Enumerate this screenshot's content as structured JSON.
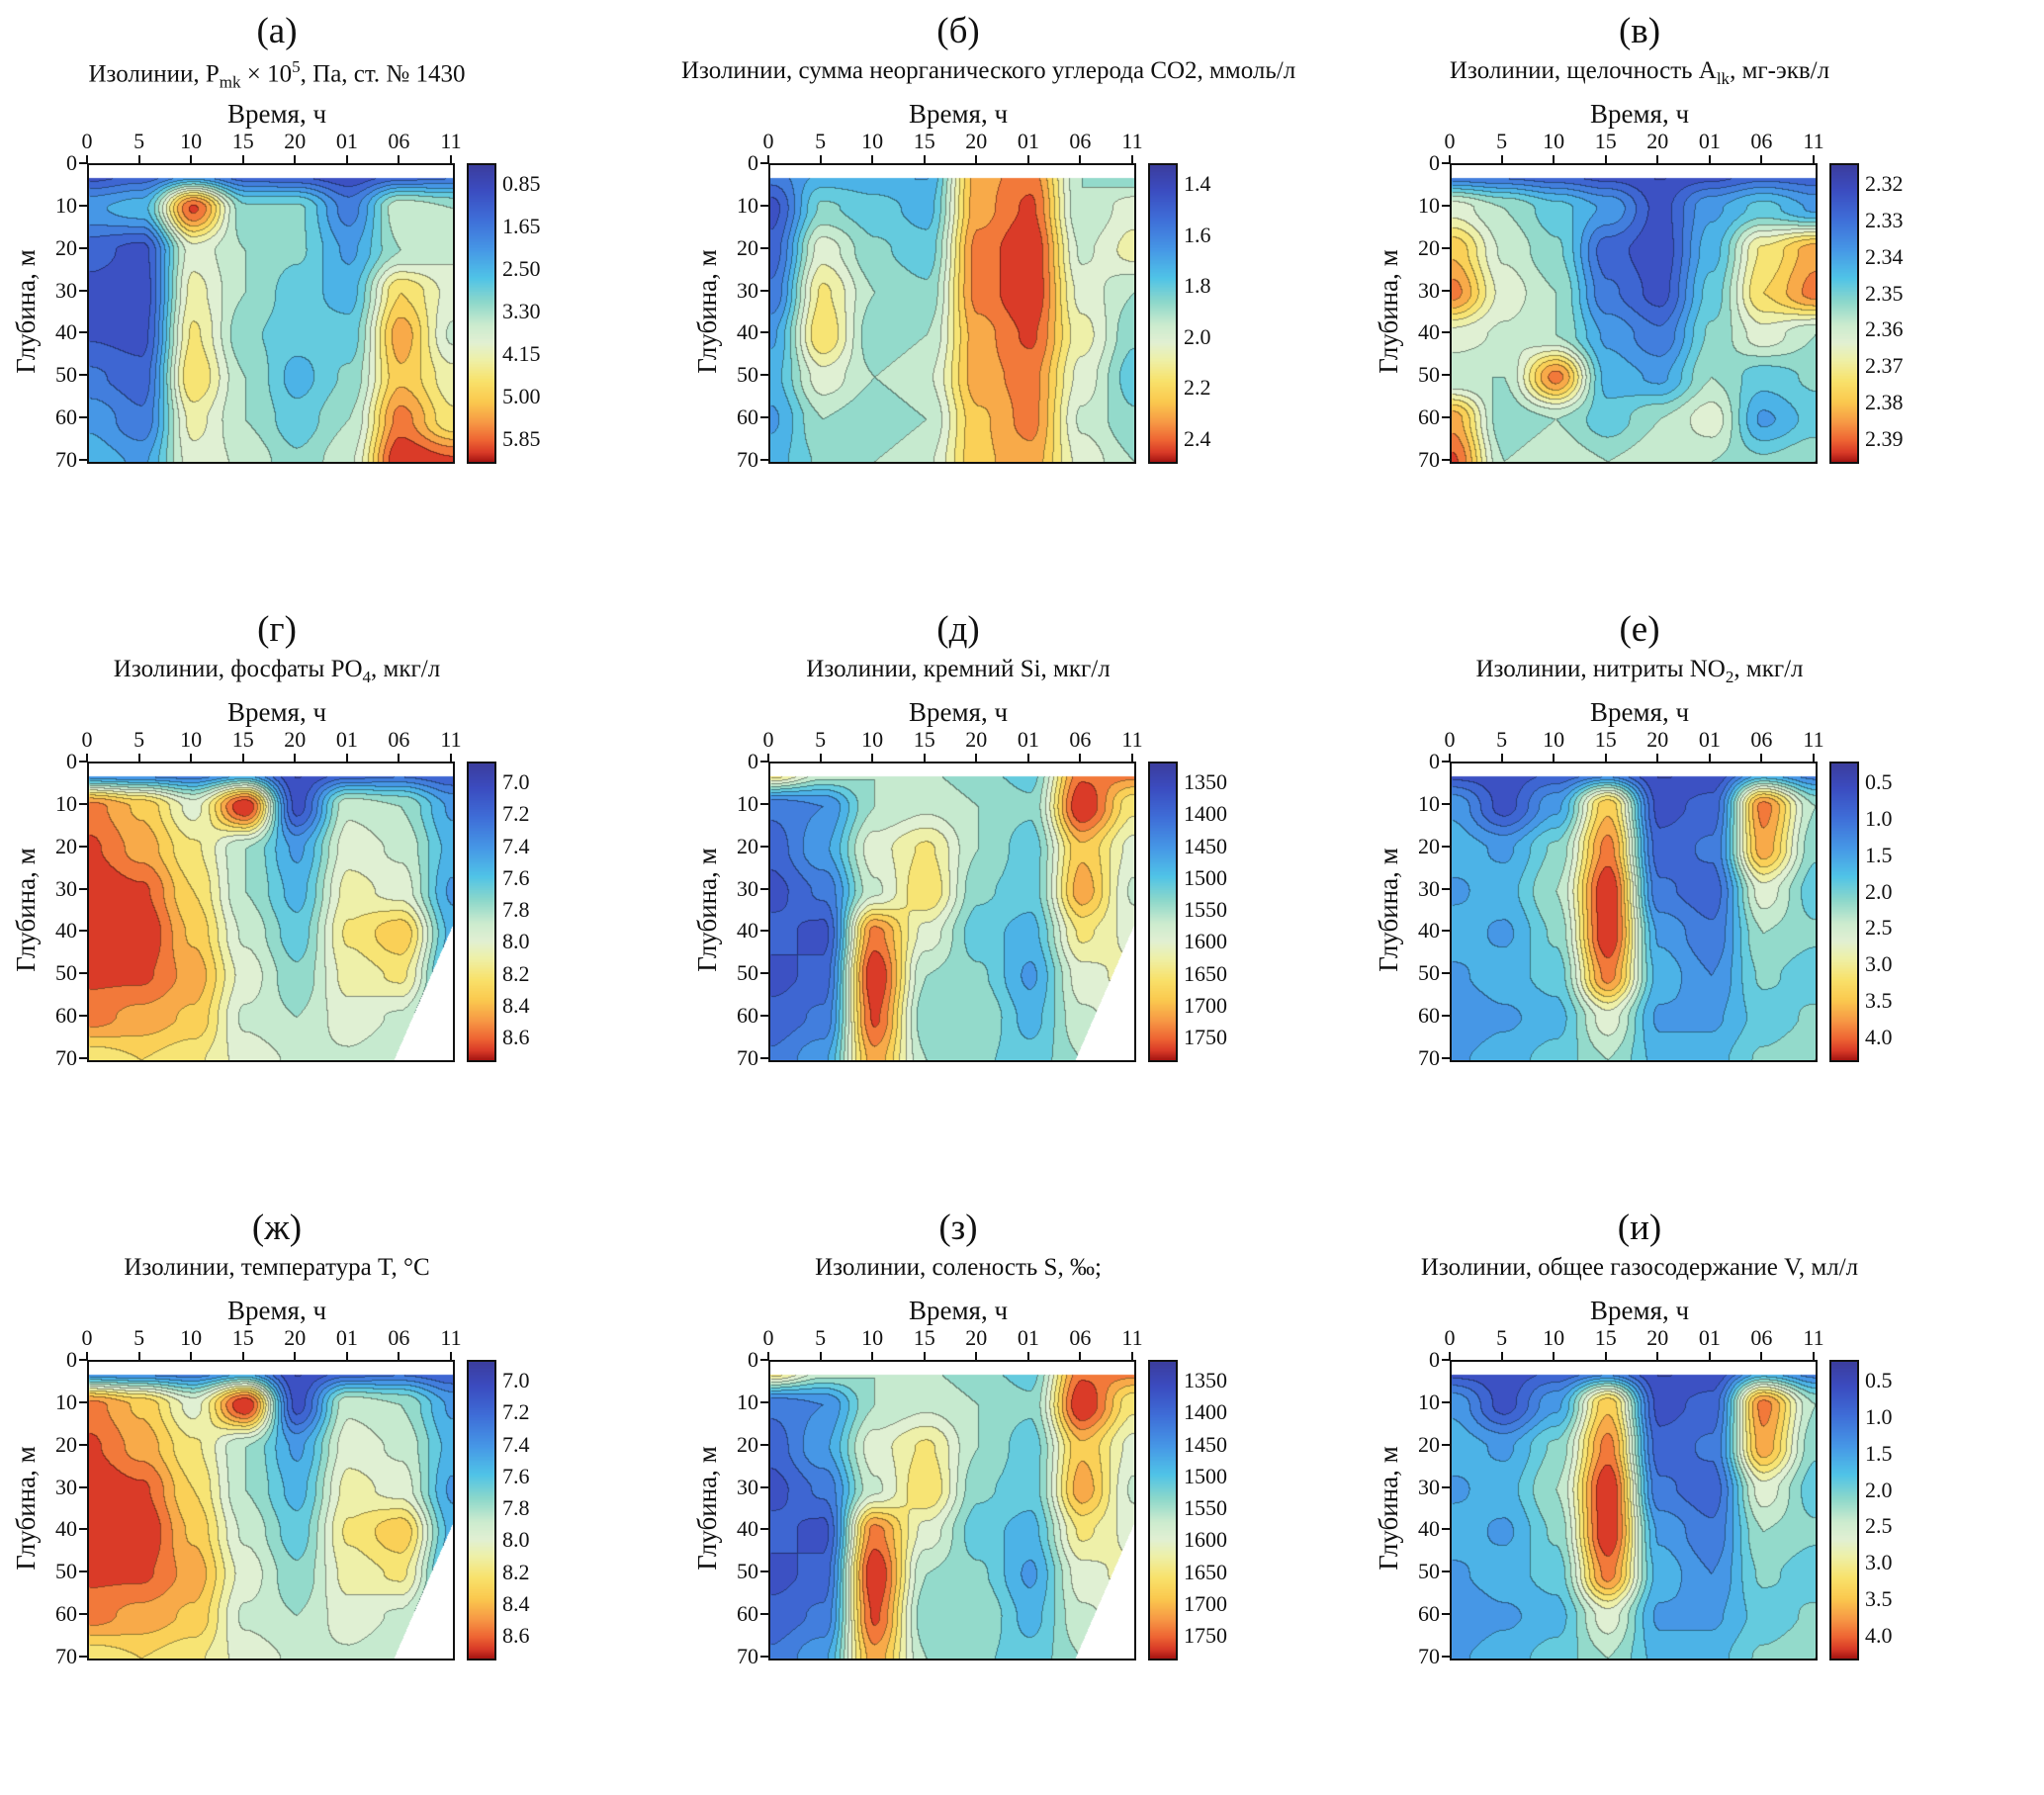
{
  "axes": {
    "xlabel": "Время, ч",
    "ylabel": "Глубина, м",
    "x_ticks": [
      "0",
      "5",
      "10",
      "15",
      "20",
      "01",
      "06",
      "11"
    ],
    "y_ticks": [
      "0",
      "10",
      "20",
      "30",
      "40",
      "50",
      "60",
      "70"
    ]
  },
  "palette": {
    "background": "#ffffff",
    "plot_border": "#111111",
    "n_levels": 16,
    "contour_line_darken": 0.58,
    "colormap_stops": [
      [
        0.0,
        "#3b3e9f"
      ],
      [
        0.08,
        "#3b4cc0"
      ],
      [
        0.18,
        "#3f6ed8"
      ],
      [
        0.28,
        "#4696e6"
      ],
      [
        0.38,
        "#50c4e8"
      ],
      [
        0.46,
        "#8cd8cb"
      ],
      [
        0.54,
        "#cdeccf"
      ],
      [
        0.6,
        "#e2f0d3"
      ],
      [
        0.66,
        "#eff0a6"
      ],
      [
        0.73,
        "#f9e26b"
      ],
      [
        0.8,
        "#fbc94f"
      ],
      [
        0.87,
        "#f79845"
      ],
      [
        0.93,
        "#ee6433"
      ],
      [
        0.97,
        "#d93a28"
      ],
      [
        1.0,
        "#a81613"
      ]
    ]
  },
  "chart_data": [
    {
      "id": "a",
      "type": "filled-contour",
      "letter": "(а)",
      "title": "Изолинии, P_{mk} × 10^{5}, Па, ст. № 1430",
      "xlabel": "Время, ч",
      "ylabel": "Глубина, м",
      "colorbar_ticks": [
        "0.85",
        "1.65",
        "2.50",
        "3.30",
        "4.15",
        "5.00",
        "5.85"
      ],
      "corner_cut": false,
      "field": [
        [
          0.05,
          0.1,
          0.12,
          0.08,
          0.05,
          0.04,
          0.06,
          0.1
        ],
        [
          0.3,
          0.35,
          0.95,
          0.45,
          0.45,
          0.22,
          0.55,
          0.5
        ],
        [
          0.15,
          0.1,
          0.6,
          0.5,
          0.45,
          0.3,
          0.5,
          0.55
        ],
        [
          0.1,
          0.08,
          0.65,
          0.5,
          0.4,
          0.35,
          0.75,
          0.6
        ],
        [
          0.12,
          0.1,
          0.7,
          0.45,
          0.4,
          0.4,
          0.85,
          0.55
        ],
        [
          0.2,
          0.15,
          0.75,
          0.5,
          0.35,
          0.45,
          0.8,
          0.65
        ],
        [
          0.3,
          0.2,
          0.65,
          0.5,
          0.4,
          0.5,
          0.9,
          0.7
        ],
        [
          0.35,
          0.3,
          0.6,
          0.55,
          0.45,
          0.55,
          1.0,
          0.95
        ]
      ]
    },
    {
      "id": "b",
      "type": "filled-contour",
      "letter": "(б)",
      "title": "Изолинии, сумма неорганического углерода CO2, ммоль/л",
      "xlabel": "Время, ч",
      "ylabel": "Глубина, м",
      "colorbar_ticks": [
        "1.4",
        "1.6",
        "1.8",
        "2.0",
        "2.2",
        "2.4"
      ],
      "corner_cut": false,
      "field": [
        [
          0.25,
          0.3,
          0.3,
          0.3,
          0.85,
          0.9,
          0.5,
          0.4
        ],
        [
          0.1,
          0.45,
          0.4,
          0.35,
          0.85,
          0.95,
          0.5,
          0.6
        ],
        [
          0.15,
          0.6,
          0.45,
          0.4,
          0.9,
          1.0,
          0.55,
          0.65
        ],
        [
          0.2,
          0.7,
          0.5,
          0.45,
          0.9,
          1.0,
          0.6,
          0.5
        ],
        [
          0.3,
          0.75,
          0.45,
          0.5,
          0.85,
          0.95,
          0.65,
          0.45
        ],
        [
          0.35,
          0.6,
          0.5,
          0.55,
          0.85,
          0.9,
          0.6,
          0.4
        ],
        [
          0.3,
          0.5,
          0.45,
          0.5,
          0.8,
          0.9,
          0.55,
          0.45
        ],
        [
          0.35,
          0.45,
          0.5,
          0.55,
          0.8,
          0.85,
          0.6,
          0.5
        ]
      ]
    },
    {
      "id": "v",
      "type": "filled-contour",
      "letter": "(в)",
      "title": "Изолинии, щелочность A_{lk}, мг-экв/л",
      "xlabel": "Время, ч",
      "ylabel": "Глубина, м",
      "colorbar_ticks": [
        "2.32",
        "2.33",
        "2.34",
        "2.35",
        "2.36",
        "2.37",
        "2.38",
        "2.39"
      ],
      "corner_cut": false,
      "field": [
        [
          0.1,
          0.1,
          0.08,
          0.05,
          0.05,
          0.05,
          0.1,
          0.1
        ],
        [
          0.6,
          0.5,
          0.4,
          0.3,
          0.1,
          0.3,
          0.4,
          0.3
        ],
        [
          0.8,
          0.55,
          0.45,
          0.15,
          0.08,
          0.35,
          0.7,
          0.85
        ],
        [
          0.9,
          0.6,
          0.5,
          0.2,
          0.1,
          0.4,
          0.75,
          0.9
        ],
        [
          0.6,
          0.55,
          0.5,
          0.3,
          0.2,
          0.45,
          0.6,
          0.5
        ],
        [
          0.5,
          0.5,
          0.9,
          0.35,
          0.3,
          0.5,
          0.4,
          0.45
        ],
        [
          0.85,
          0.45,
          0.5,
          0.4,
          0.5,
          0.6,
          0.3,
          0.4
        ],
        [
          0.95,
          0.5,
          0.55,
          0.5,
          0.55,
          0.5,
          0.45,
          0.5
        ]
      ]
    },
    {
      "id": "g",
      "type": "filled-contour",
      "letter": "(г)",
      "title": "Изолинии, фосфаты PO_{4}, мкг/л",
      "xlabel": "Время, ч",
      "ylabel": "Глубина, м",
      "colorbar_ticks": [
        "7.0",
        "7.2",
        "7.4",
        "7.6",
        "7.8",
        "8.0",
        "8.2",
        "8.4",
        "8.6"
      ],
      "corner_cut": true,
      "field": [
        [
          0.1,
          0.1,
          0.12,
          0.15,
          0.05,
          0.06,
          0.1,
          0.08
        ],
        [
          0.9,
          0.8,
          0.6,
          1.0,
          0.1,
          0.55,
          0.5,
          0.3
        ],
        [
          0.95,
          0.85,
          0.7,
          0.5,
          0.3,
          0.6,
          0.55,
          0.35
        ],
        [
          1.0,
          0.95,
          0.75,
          0.5,
          0.35,
          0.65,
          0.6,
          0.3
        ],
        [
          1.0,
          1.0,
          0.8,
          0.55,
          0.4,
          0.7,
          0.8,
          0.35
        ],
        [
          0.95,
          0.95,
          0.85,
          0.6,
          0.45,
          0.65,
          0.7,
          0.3
        ],
        [
          0.9,
          0.85,
          0.8,
          0.55,
          0.5,
          0.6,
          0.55,
          0.25
        ],
        [
          0.7,
          0.75,
          0.7,
          0.6,
          0.55,
          0.55,
          0.5,
          0.4
        ]
      ]
    },
    {
      "id": "d",
      "type": "filled-contour",
      "letter": "(д)",
      "title": "Изолинии, кремний Si, мкг/л",
      "xlabel": "Время, ч",
      "ylabel": "Глубина, м",
      "colorbar_ticks": [
        "1350",
        "1400",
        "1450",
        "1500",
        "1550",
        "1600",
        "1650",
        "1700",
        "1750"
      ],
      "corner_cut": true,
      "field": [
        [
          0.85,
          0.6,
          0.5,
          0.5,
          0.45,
          0.4,
          0.9,
          0.95
        ],
        [
          0.2,
          0.25,
          0.5,
          0.55,
          0.5,
          0.45,
          1.0,
          0.7
        ],
        [
          0.15,
          0.3,
          0.6,
          0.7,
          0.5,
          0.4,
          0.8,
          0.6
        ],
        [
          0.1,
          0.2,
          0.55,
          0.75,
          0.45,
          0.4,
          0.85,
          0.55
        ],
        [
          0.15,
          0.1,
          0.9,
          0.6,
          0.4,
          0.35,
          0.7,
          0.6
        ],
        [
          0.1,
          0.15,
          1.0,
          0.5,
          0.45,
          0.3,
          0.6,
          0.65
        ],
        [
          0.15,
          0.2,
          0.95,
          0.45,
          0.5,
          0.35,
          0.55,
          0.6
        ],
        [
          0.2,
          0.3,
          0.85,
          0.5,
          0.45,
          0.4,
          0.5,
          0.55
        ]
      ]
    },
    {
      "id": "e",
      "type": "filled-contour",
      "letter": "(е)",
      "title": "Изолинии, нитриты NO_{2}, мкг/л",
      "xlabel": "Время, ч",
      "ylabel": "Глубина, м",
      "colorbar_ticks": [
        "0.5",
        "1.0",
        "1.5",
        "2.0",
        "2.5",
        "3.0",
        "3.5",
        "4.0"
      ],
      "corner_cut": false,
      "field": [
        [
          0.05,
          0.08,
          0.1,
          0.1,
          0.05,
          0.05,
          0.2,
          0.15
        ],
        [
          0.3,
          0.1,
          0.3,
          0.8,
          0.1,
          0.15,
          0.9,
          0.5
        ],
        [
          0.35,
          0.3,
          0.45,
          0.9,
          0.15,
          0.2,
          0.85,
          0.45
        ],
        [
          0.3,
          0.35,
          0.5,
          1.0,
          0.2,
          0.15,
          0.6,
          0.4
        ],
        [
          0.35,
          0.3,
          0.45,
          1.0,
          0.3,
          0.2,
          0.5,
          0.45
        ],
        [
          0.3,
          0.35,
          0.4,
          0.9,
          0.35,
          0.25,
          0.45,
          0.4
        ],
        [
          0.25,
          0.3,
          0.35,
          0.6,
          0.3,
          0.3,
          0.4,
          0.45
        ],
        [
          0.3,
          0.35,
          0.4,
          0.5,
          0.35,
          0.35,
          0.45,
          0.5
        ]
      ]
    },
    {
      "id": "zh",
      "type": "filled-contour",
      "letter": "(ж)",
      "title": "Изолинии, температура T, °C",
      "xlabel": "Время, ч",
      "ylabel": "Глубина, м",
      "colorbar_ticks": [
        "7.0",
        "7.2",
        "7.4",
        "7.6",
        "7.8",
        "8.0",
        "8.2",
        "8.4",
        "8.6"
      ],
      "corner_cut": true,
      "field": [
        [
          0.1,
          0.1,
          0.12,
          0.15,
          0.05,
          0.06,
          0.1,
          0.08
        ],
        [
          0.9,
          0.8,
          0.6,
          1.0,
          0.1,
          0.55,
          0.5,
          0.3
        ],
        [
          0.95,
          0.85,
          0.7,
          0.5,
          0.3,
          0.6,
          0.55,
          0.35
        ],
        [
          1.0,
          0.95,
          0.75,
          0.5,
          0.35,
          0.65,
          0.6,
          0.3
        ],
        [
          1.0,
          1.0,
          0.8,
          0.55,
          0.4,
          0.7,
          0.8,
          0.35
        ],
        [
          0.95,
          0.95,
          0.85,
          0.6,
          0.45,
          0.65,
          0.7,
          0.3
        ],
        [
          0.9,
          0.85,
          0.8,
          0.55,
          0.5,
          0.6,
          0.55,
          0.25
        ],
        [
          0.7,
          0.75,
          0.7,
          0.6,
          0.55,
          0.55,
          0.5,
          0.4
        ]
      ]
    },
    {
      "id": "z",
      "type": "filled-contour",
      "letter": "(з)",
      "title": "Изолинии, соленость S, ‰;",
      "xlabel": "Время, ч",
      "ylabel": "Глубина, м",
      "colorbar_ticks": [
        "1350",
        "1400",
        "1450",
        "1500",
        "1550",
        "1600",
        "1650",
        "1700",
        "1750"
      ],
      "corner_cut": true,
      "field": [
        [
          0.85,
          0.6,
          0.5,
          0.5,
          0.45,
          0.4,
          0.9,
          0.95
        ],
        [
          0.2,
          0.25,
          0.5,
          0.55,
          0.5,
          0.45,
          1.0,
          0.7
        ],
        [
          0.15,
          0.3,
          0.6,
          0.7,
          0.5,
          0.4,
          0.8,
          0.6
        ],
        [
          0.1,
          0.2,
          0.55,
          0.75,
          0.45,
          0.4,
          0.85,
          0.55
        ],
        [
          0.15,
          0.1,
          0.9,
          0.6,
          0.4,
          0.35,
          0.7,
          0.6
        ],
        [
          0.1,
          0.15,
          1.0,
          0.5,
          0.45,
          0.3,
          0.6,
          0.65
        ],
        [
          0.15,
          0.2,
          0.95,
          0.45,
          0.5,
          0.35,
          0.55,
          0.6
        ],
        [
          0.2,
          0.3,
          0.85,
          0.5,
          0.45,
          0.4,
          0.5,
          0.55
        ]
      ]
    },
    {
      "id": "i",
      "type": "filled-contour",
      "letter": "(и)",
      "title": "Изолинии, общее газосодержание V, мл/л",
      "xlabel": "Время, ч",
      "ylabel": "Глубина, м",
      "colorbar_ticks": [
        "0.5",
        "1.0",
        "1.5",
        "2.0",
        "2.5",
        "3.0",
        "3.5",
        "4.0"
      ],
      "corner_cut": false,
      "field": [
        [
          0.05,
          0.08,
          0.1,
          0.1,
          0.05,
          0.05,
          0.2,
          0.15
        ],
        [
          0.3,
          0.1,
          0.3,
          0.8,
          0.1,
          0.15,
          0.9,
          0.5
        ],
        [
          0.35,
          0.3,
          0.45,
          0.9,
          0.15,
          0.2,
          0.85,
          0.45
        ],
        [
          0.3,
          0.35,
          0.5,
          1.0,
          0.2,
          0.15,
          0.6,
          0.4
        ],
        [
          0.35,
          0.3,
          0.45,
          1.0,
          0.3,
          0.2,
          0.5,
          0.45
        ],
        [
          0.3,
          0.35,
          0.4,
          0.9,
          0.35,
          0.25,
          0.45,
          0.4
        ],
        [
          0.25,
          0.3,
          0.35,
          0.6,
          0.3,
          0.3,
          0.4,
          0.45
        ],
        [
          0.3,
          0.35,
          0.4,
          0.5,
          0.35,
          0.35,
          0.45,
          0.5
        ]
      ]
    }
  ]
}
